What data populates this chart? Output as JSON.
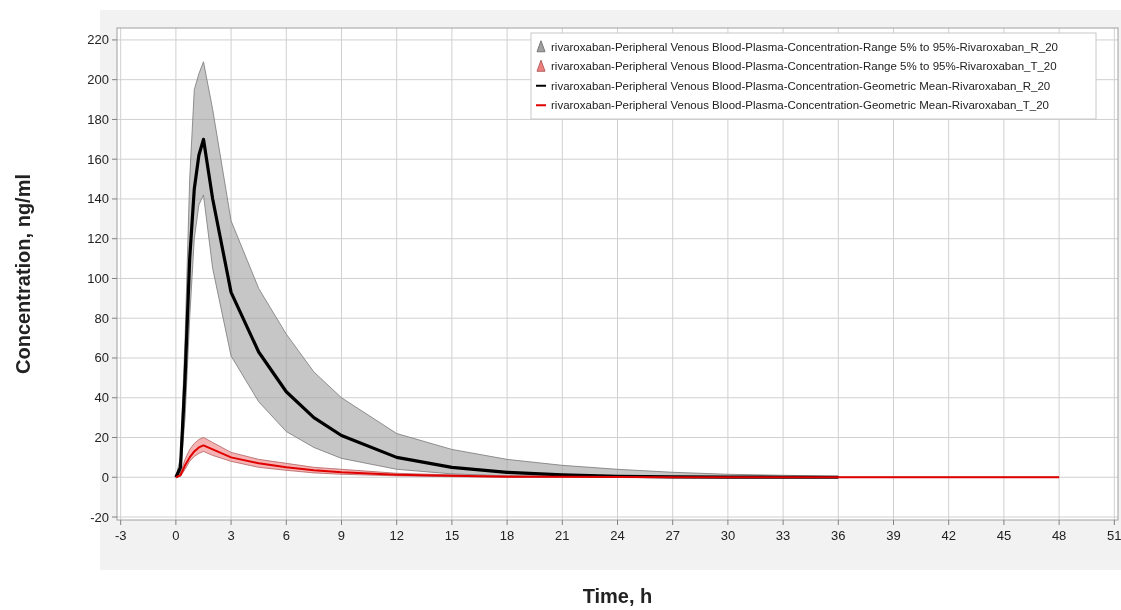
{
  "chart_data": {
    "type": "line",
    "xlabel": "Time, h",
    "ylabel": "Concentration, ng/ml",
    "xlim": [
      -3.2,
      51.2
    ],
    "ylim": [
      -21.5,
      226
    ],
    "xticks": [
      -3,
      0,
      3,
      6,
      9,
      12,
      15,
      18,
      21,
      24,
      27,
      30,
      33,
      36,
      39,
      42,
      45,
      48,
      51
    ],
    "yticks": [
      -20,
      0,
      20,
      40,
      60,
      80,
      100,
      120,
      140,
      160,
      180,
      200,
      220
    ],
    "grid": true,
    "legend": "top right",
    "marker": "none",
    "line_style": "solid",
    "annotations": [
      "rivaroxaban-Peripheral Venous Blood-Plasma-Concentration-Range 5% to 95%-Rivaroxaban_R_20",
      "rivaroxaban-Peripheral Venous Blood-Plasma-Concentration-Range 5% to 95%-Rivaroxaban_T_20"
    ],
    "series": [
      {
        "name": "rivaroxaban-Peripheral Venous Blood-Plasma-Concentration-Geometric Mean-Rivaroxaban_R_20",
        "color": "#000000",
        "x": [
          0,
          0.25,
          0.5,
          0.75,
          1,
          1.25,
          1.5,
          2,
          3,
          4.5,
          6,
          7.5,
          9,
          12,
          15,
          18,
          21,
          24,
          27,
          30,
          33,
          36
        ],
        "values": [
          0,
          5,
          50,
          110,
          145,
          162,
          170,
          140,
          93,
          63,
          43,
          30,
          21,
          10,
          5,
          2.5,
          1.2,
          0.5,
          0.2,
          0.1,
          0,
          0
        ],
        "lower": [
          0,
          2,
          30,
          80,
          120,
          137,
          142,
          105,
          61,
          38,
          23,
          15,
          9.5,
          4,
          1.7,
          0.7,
          0.3,
          0.1,
          0,
          0,
          0,
          0
        ],
        "upper": [
          0,
          10,
          70,
          150,
          195,
          203,
          209,
          185,
          129,
          95,
          72,
          53,
          40,
          22,
          14,
          9,
          6,
          4,
          2.5,
          1.5,
          1,
          0.5
        ]
      },
      {
        "name": "rivaroxaban-Peripheral Venous Blood-Plasma-Concentration-Geometric Mean-Rivaroxaban_T_20",
        "color": "#e00000",
        "x": [
          0,
          0.25,
          0.5,
          0.75,
          1,
          1.25,
          1.5,
          2,
          3,
          4.5,
          6,
          7.5,
          9,
          12,
          15,
          18,
          21,
          24,
          27,
          30,
          33,
          36,
          39,
          42,
          45,
          48
        ],
        "values": [
          0,
          1,
          6,
          10,
          13,
          15,
          16,
          14,
          10,
          7,
          5,
          3.5,
          2.5,
          1.3,
          0.7,
          0.3,
          0.2,
          0.1,
          0,
          0,
          0,
          0,
          0,
          0,
          0,
          0
        ],
        "lower": [
          0,
          0.5,
          4,
          8,
          10.5,
          12,
          13,
          11,
          8,
          5,
          3.5,
          2.2,
          1.5,
          0.7,
          0.3,
          0.1,
          0,
          0,
          0,
          0,
          0,
          0,
          0,
          0,
          0,
          0
        ],
        "upper": [
          0,
          2,
          9,
          14,
          17,
          19,
          20,
          17.5,
          12.5,
          9,
          7,
          5,
          4,
          2,
          1.2,
          0.7,
          0.5,
          0.3,
          0.2,
          0.1,
          0,
          0,
          0,
          0,
          0,
          0
        ]
      }
    ]
  }
}
